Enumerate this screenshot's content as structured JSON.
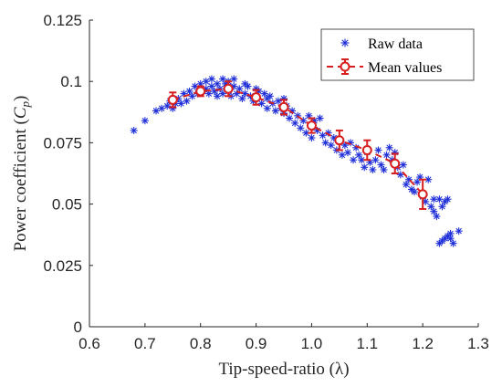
{
  "chart_data": {
    "type": "scatter",
    "xlabel": {
      "text": "Tip-speed-ratio",
      "symbol": "(λ)"
    },
    "ylabel": {
      "text": "Power coefficient",
      "symbol_main": "C",
      "symbol_sub": "p"
    },
    "xlim": [
      0.6,
      1.3
    ],
    "ylim": [
      0,
      0.125
    ],
    "xticks": [
      {
        "value": 0.6,
        "label": "0.6"
      },
      {
        "value": 0.7,
        "label": "0.7"
      },
      {
        "value": 0.8,
        "label": "0.8"
      },
      {
        "value": 0.9,
        "label": "0.9"
      },
      {
        "value": 1.0,
        "label": "1.0"
      },
      {
        "value": 1.1,
        "label": "1.1"
      },
      {
        "value": 1.2,
        "label": "1.2"
      },
      {
        "value": 1.3,
        "label": "1.3"
      }
    ],
    "yticks": [
      {
        "value": 0,
        "label": "0"
      },
      {
        "value": 0.025,
        "label": "0.025"
      },
      {
        "value": 0.05,
        "label": "0.05"
      },
      {
        "value": 0.075,
        "label": "0.075"
      },
      {
        "value": 0.1,
        "label": "0.1"
      },
      {
        "value": 0.125,
        "label": "0.125"
      }
    ],
    "grid": false,
    "legend_position": "top-right",
    "series": [
      {
        "name": "Raw data",
        "marker": "asterisk",
        "color": "#1f2fd8",
        "points": [
          [
            0.68,
            0.08
          ],
          [
            0.7,
            0.084
          ],
          [
            0.72,
            0.088
          ],
          [
            0.73,
            0.089
          ],
          [
            0.74,
            0.09
          ],
          [
            0.745,
            0.092
          ],
          [
            0.75,
            0.089
          ],
          [
            0.755,
            0.091
          ],
          [
            0.76,
            0.093
          ],
          [
            0.765,
            0.091
          ],
          [
            0.77,
            0.095
          ],
          [
            0.775,
            0.092
          ],
          [
            0.78,
            0.096
          ],
          [
            0.785,
            0.094
          ],
          [
            0.79,
            0.098
          ],
          [
            0.795,
            0.095
          ],
          [
            0.8,
            0.099
          ],
          [
            0.8,
            0.097
          ],
          [
            0.805,
            0.096
          ],
          [
            0.81,
            0.1
          ],
          [
            0.81,
            0.097
          ],
          [
            0.815,
            0.095
          ],
          [
            0.82,
            0.101
          ],
          [
            0.82,
            0.098
          ],
          [
            0.825,
            0.096
          ],
          [
            0.83,
            0.099
          ],
          [
            0.83,
            0.094
          ],
          [
            0.835,
            0.097
          ],
          [
            0.84,
            0.101
          ],
          [
            0.84,
            0.095
          ],
          [
            0.845,
            0.099
          ],
          [
            0.85,
            0.1
          ],
          [
            0.85,
            0.096
          ],
          [
            0.855,
            0.094
          ],
          [
            0.86,
            0.098
          ],
          [
            0.86,
            0.101
          ],
          [
            0.865,
            0.095
          ],
          [
            0.87,
            0.097
          ],
          [
            0.875,
            0.093
          ],
          [
            0.88,
            0.099
          ],
          [
            0.88,
            0.095
          ],
          [
            0.885,
            0.098
          ],
          [
            0.89,
            0.094
          ],
          [
            0.895,
            0.092
          ],
          [
            0.9,
            0.097
          ],
          [
            0.9,
            0.093
          ],
          [
            0.905,
            0.096
          ],
          [
            0.91,
            0.091
          ],
          [
            0.915,
            0.095
          ],
          [
            0.92,
            0.093
          ],
          [
            0.92,
            0.089
          ],
          [
            0.925,
            0.094
          ],
          [
            0.93,
            0.091
          ],
          [
            0.935,
            0.088
          ],
          [
            0.94,
            0.092
          ],
          [
            0.945,
            0.089
          ],
          [
            0.95,
            0.093
          ],
          [
            0.95,
            0.087
          ],
          [
            0.955,
            0.09
          ],
          [
            0.96,
            0.085
          ],
          [
            0.965,
            0.088
          ],
          [
            0.97,
            0.083
          ],
          [
            0.975,
            0.086
          ],
          [
            0.98,
            0.081
          ],
          [
            0.985,
            0.084
          ],
          [
            0.99,
            0.079
          ],
          [
            0.995,
            0.086
          ],
          [
            1.0,
            0.082
          ],
          [
            1.0,
            0.077
          ],
          [
            1.005,
            0.084
          ],
          [
            1.01,
            0.08
          ],
          [
            1.015,
            0.085
          ],
          [
            1.02,
            0.078
          ],
          [
            1.025,
            0.075
          ],
          [
            1.03,
            0.079
          ],
          [
            1.035,
            0.074
          ],
          [
            1.04,
            0.077
          ],
          [
            1.045,
            0.072
          ],
          [
            1.05,
            0.076
          ],
          [
            1.055,
            0.07
          ],
          [
            1.06,
            0.074
          ],
          [
            1.065,
            0.071
          ],
          [
            1.07,
            0.075
          ],
          [
            1.075,
            0.068
          ],
          [
            1.08,
            0.073
          ],
          [
            1.085,
            0.07
          ],
          [
            1.09,
            0.068
          ],
          [
            1.095,
            0.065
          ],
          [
            1.1,
            0.071
          ],
          [
            1.105,
            0.067
          ],
          [
            1.11,
            0.064
          ],
          [
            1.115,
            0.068
          ],
          [
            1.12,
            0.072
          ],
          [
            1.125,
            0.066
          ],
          [
            1.13,
            0.064
          ],
          [
            1.135,
            0.07
          ],
          [
            1.14,
            0.073
          ],
          [
            1.145,
            0.068
          ],
          [
            1.15,
            0.071
          ],
          [
            1.155,
            0.065
          ],
          [
            1.16,
            0.062
          ],
          [
            1.165,
            0.066
          ],
          [
            1.17,
            0.058
          ],
          [
            1.175,
            0.06
          ],
          [
            1.18,
            0.056
          ],
          [
            1.185,
            0.055
          ],
          [
            1.19,
            0.059
          ],
          [
            1.195,
            0.061
          ],
          [
            1.2,
            0.053
          ],
          [
            1.205,
            0.051
          ],
          [
            1.21,
            0.06
          ],
          [
            1.215,
            0.049
          ],
          [
            1.22,
            0.047
          ],
          [
            1.22,
            0.052
          ],
          [
            1.225,
            0.045
          ],
          [
            1.23,
            0.052
          ],
          [
            1.235,
            0.049
          ],
          [
            1.24,
            0.051
          ],
          [
            1.245,
            0.052
          ],
          [
            1.25,
            0.038
          ],
          [
            1.23,
            0.034
          ],
          [
            1.235,
            0.035
          ],
          [
            1.24,
            0.036
          ],
          [
            1.245,
            0.037
          ],
          [
            1.25,
            0.036
          ],
          [
            1.255,
            0.034
          ],
          [
            1.265,
            0.039
          ]
        ]
      },
      {
        "name": "Mean values",
        "marker": "circle",
        "line": "dashed",
        "color": "#d81f1f",
        "points": [
          {
            "x": 0.75,
            "y": 0.0925,
            "err": 0.003
          },
          {
            "x": 0.8,
            "y": 0.096,
            "err": 0.002
          },
          {
            "x": 0.85,
            "y": 0.097,
            "err": 0.003
          },
          {
            "x": 0.9,
            "y": 0.0935,
            "err": 0.003
          },
          {
            "x": 0.95,
            "y": 0.0895,
            "err": 0.003
          },
          {
            "x": 1.0,
            "y": 0.082,
            "err": 0.003
          },
          {
            "x": 1.05,
            "y": 0.076,
            "err": 0.004
          },
          {
            "x": 1.1,
            "y": 0.072,
            "err": 0.004
          },
          {
            "x": 1.15,
            "y": 0.0665,
            "err": 0.004
          },
          {
            "x": 1.2,
            "y": 0.054,
            "err": 0.006
          }
        ]
      }
    ]
  }
}
